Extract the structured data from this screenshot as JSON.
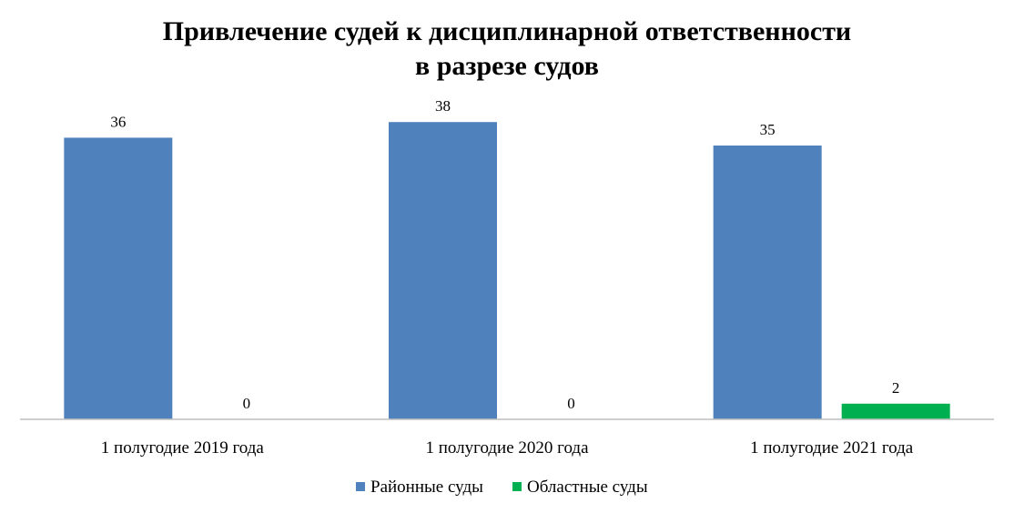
{
  "chart_data": {
    "type": "bar",
    "title_lines": [
      "Привлечение судей к дисциплинарной ответственности",
      "в разрезе судов"
    ],
    "categories": [
      "1 полугодие 2019 года",
      "1 полугодие 2020 года",
      "1 полугодие 2021 года"
    ],
    "series": [
      {
        "name": "Районные суды",
        "values": [
          36,
          38,
          35
        ],
        "color": "#4F81BD"
      },
      {
        "name": "Областные суды",
        "values": [
          0,
          0,
          2
        ],
        "color": "#00B050"
      }
    ],
    "ylim": [
      0,
      40
    ],
    "grid": false,
    "legend_position": "bottom"
  }
}
